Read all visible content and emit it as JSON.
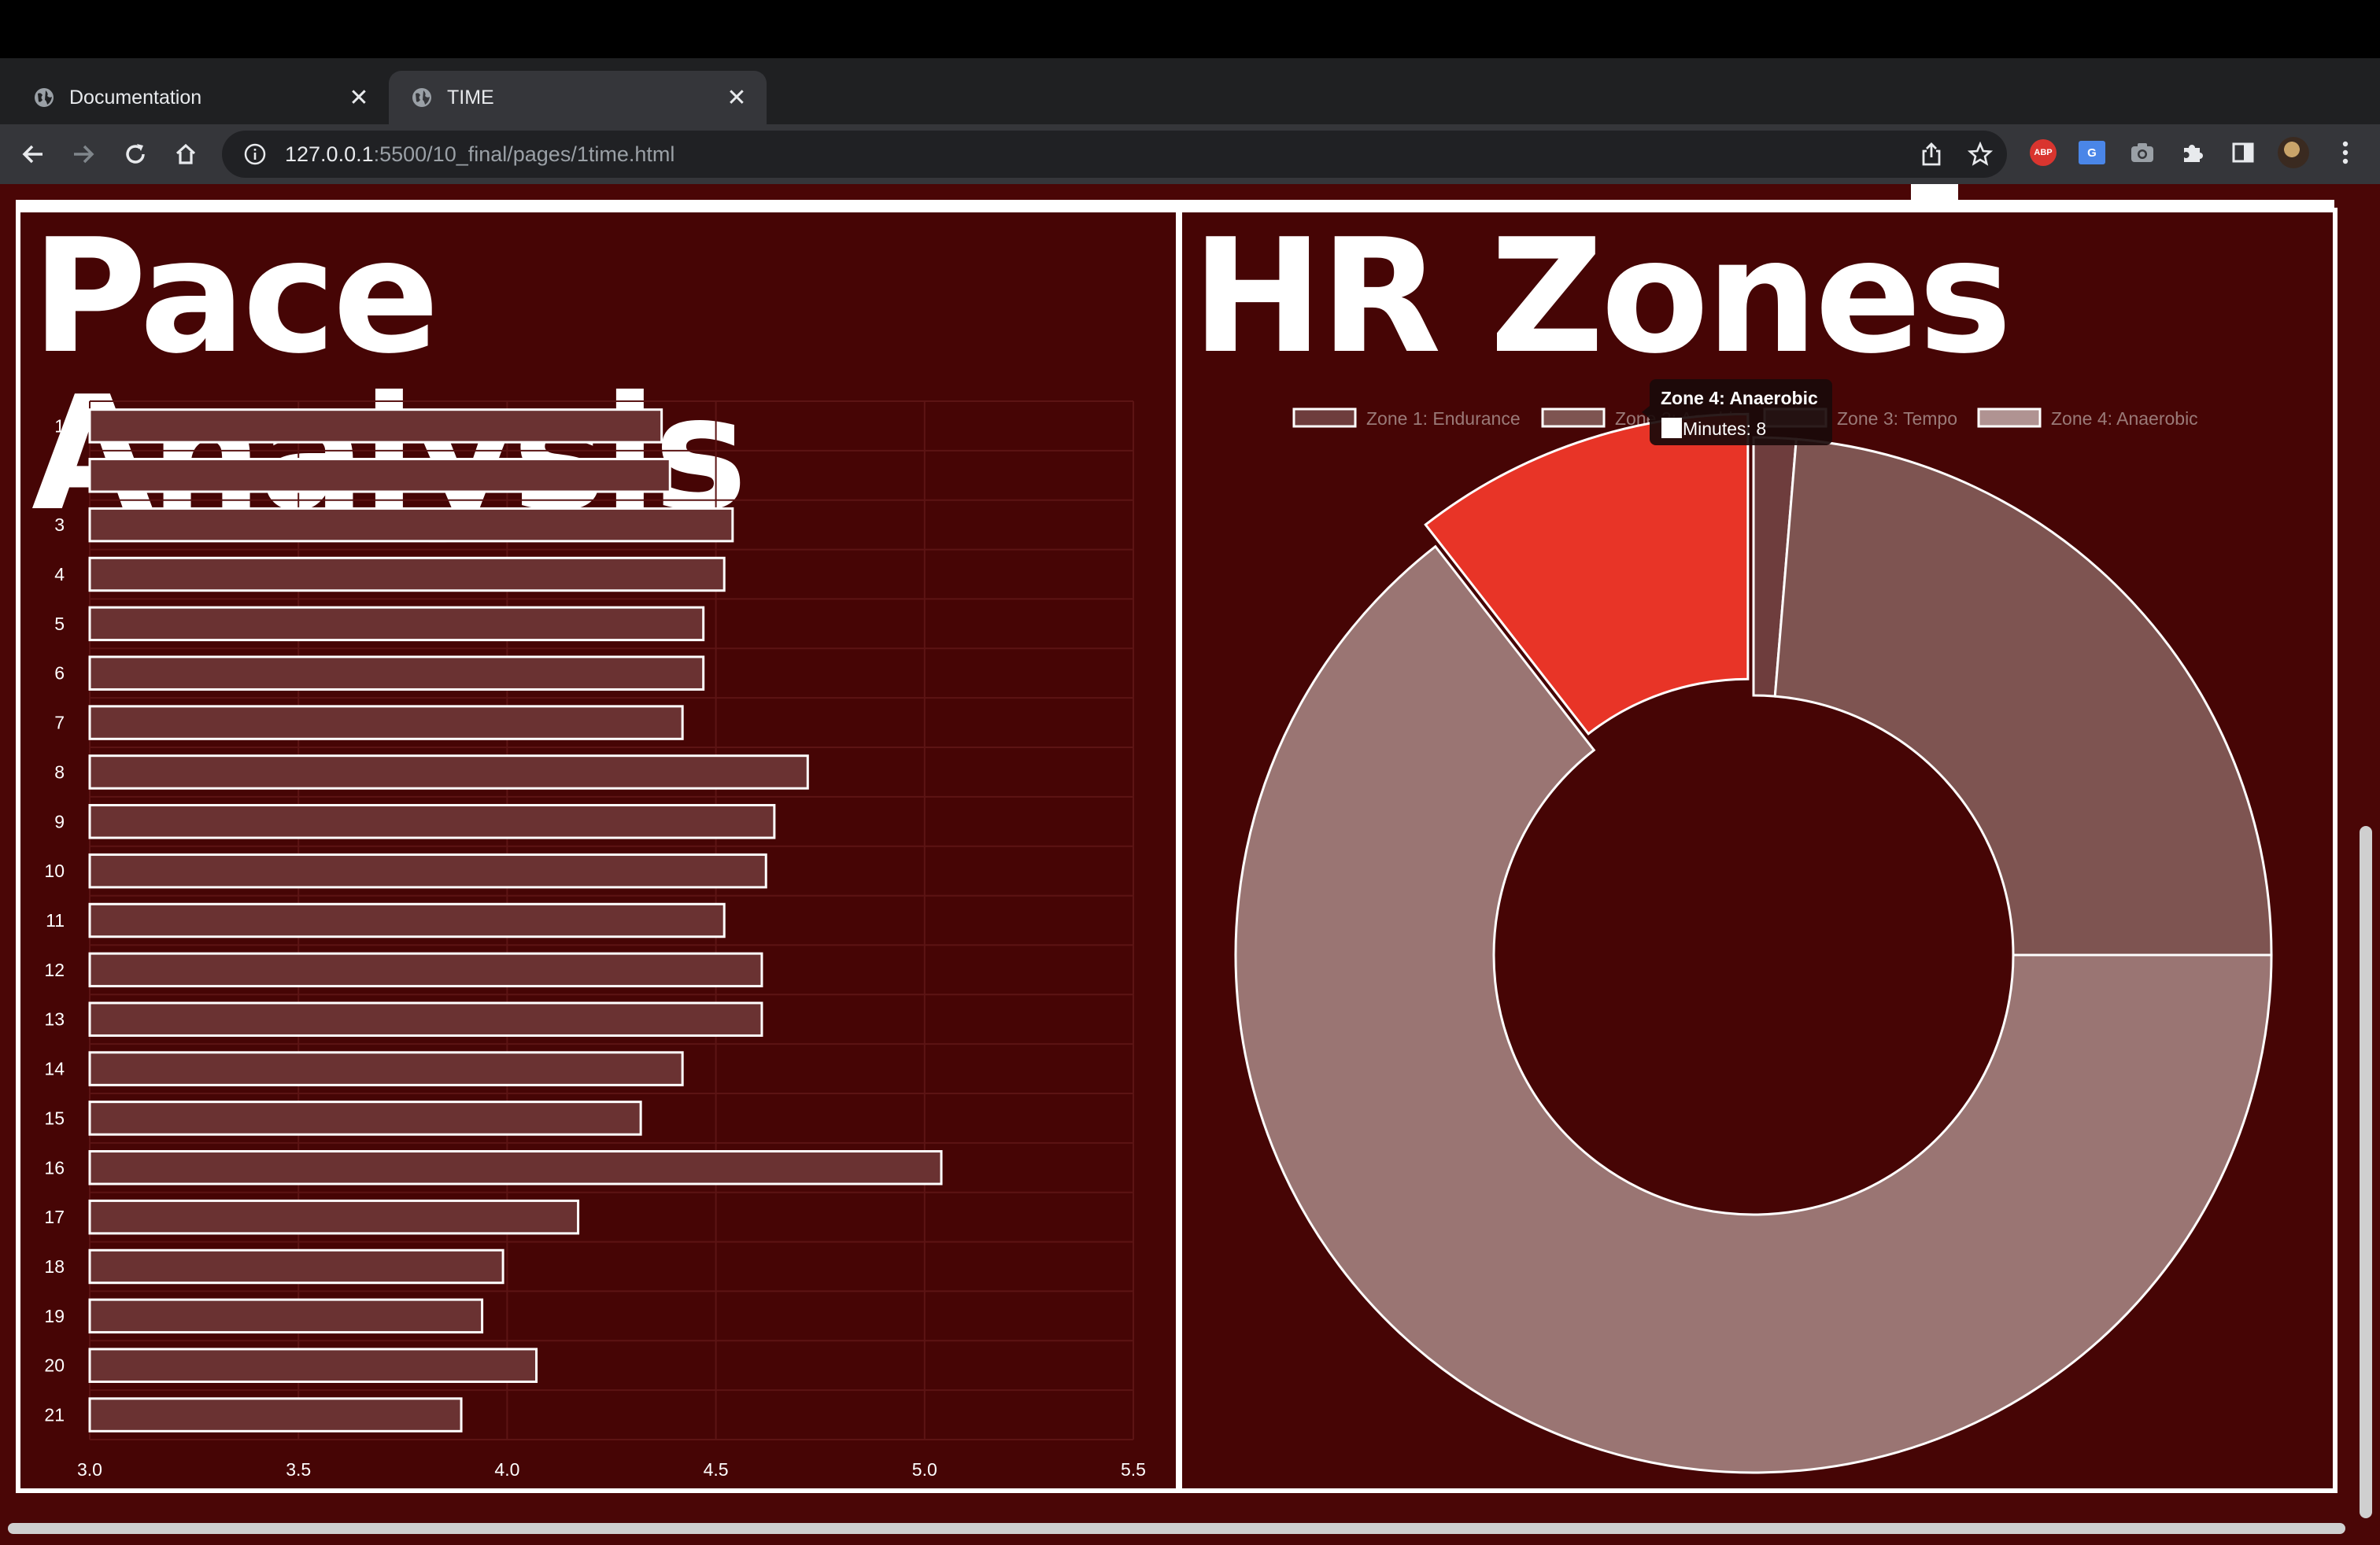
{
  "browser": {
    "tabs": [
      {
        "title": "Documentation",
        "active": false
      },
      {
        "title": "TIME",
        "active": true
      }
    ],
    "url_host": "127.0.0.1",
    "url_path": ":5500/10_final/pages/1time.html"
  },
  "pace_panel": {
    "title": "Pace Analysis"
  },
  "hr_panel": {
    "title": "HR Zones",
    "tooltip": {
      "title": "Zone 4: Anaerobic",
      "label": "Minutes: 8"
    }
  },
  "chart_data": [
    {
      "type": "bar",
      "orientation": "horizontal",
      "title": "Pace Analysis",
      "categories": [
        "1",
        "2",
        "3",
        "4",
        "5",
        "6",
        "7",
        "8",
        "9",
        "10",
        "11",
        "12",
        "13",
        "14",
        "15",
        "16",
        "17",
        "18",
        "19",
        "20",
        "21"
      ],
      "values": [
        4.37,
        4.39,
        4.54,
        4.52,
        4.47,
        4.47,
        4.42,
        4.72,
        4.64,
        4.62,
        4.52,
        4.61,
        4.61,
        4.42,
        4.32,
        5.04,
        4.17,
        3.99,
        3.94,
        4.07,
        3.89
      ],
      "xlim": [
        3.0,
        5.5
      ],
      "xticks": [
        "3.0",
        "3.5",
        "4.0",
        "4.5",
        "5.0",
        "5.5"
      ],
      "grid": true,
      "bar_color": "#6a3232",
      "bar_border": "#ffffff"
    },
    {
      "type": "pie",
      "variant": "doughnut",
      "title": "HR Zones",
      "labels": [
        "Zone 1: Endurance",
        "Zone 2: Aerobic",
        "Zone 3: Tempo",
        "Zone 4: Anaerobic"
      ],
      "values": [
        1,
        18,
        49,
        8
      ],
      "colors": [
        "#6e3d3d",
        "#7e5451",
        "#9a7573",
        "#e83427"
      ],
      "legend_colors": [
        "#6e3d3d",
        "#7e5451",
        "#9a7573",
        "#b09392"
      ],
      "legend": "top",
      "highlighted": "Zone 4: Anaerobic"
    }
  ]
}
